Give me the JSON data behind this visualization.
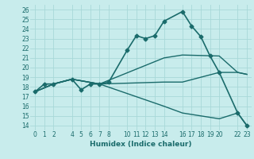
{
  "xlabel": "Humidex (Indice chaleur)",
  "bg_color": "#c8ecec",
  "grid_color": "#a8d8d8",
  "line_color": "#1a6b6b",
  "xlim": [
    -0.5,
    23.5
  ],
  "ylim": [
    13.5,
    26.5
  ],
  "yticks": [
    14,
    15,
    16,
    17,
    18,
    19,
    20,
    21,
    22,
    23,
    24,
    25,
    26
  ],
  "xtick_positions": [
    0,
    1,
    2,
    4,
    5,
    6,
    7,
    8,
    10,
    11,
    12,
    13,
    14,
    16,
    17,
    18,
    19,
    20,
    22,
    23
  ],
  "xtick_labels": [
    "0",
    "1",
    "2",
    "4",
    "5",
    "6",
    "7",
    "8",
    "10",
    "11",
    "12",
    "13",
    "14",
    "16",
    "17",
    "18",
    "19",
    "20",
    "22",
    "23"
  ],
  "series": [
    {
      "x": [
        0,
        1,
        2,
        4,
        5,
        6,
        7,
        8,
        10,
        11,
        12,
        13,
        14,
        16,
        17,
        18,
        19,
        20,
        22,
        23
      ],
      "y": [
        17.5,
        18.3,
        18.3,
        18.8,
        17.7,
        18.3,
        18.3,
        18.5,
        21.8,
        23.3,
        23.0,
        23.3,
        24.8,
        25.8,
        24.3,
        23.2,
        21.2,
        19.5,
        15.3,
        14.0
      ],
      "marker": "D",
      "markersize": 2.5,
      "linewidth": 1.2
    },
    {
      "x": [
        0,
        2,
        4,
        7,
        14,
        16,
        20,
        22,
        23
      ],
      "y": [
        17.5,
        18.3,
        18.8,
        18.3,
        21.0,
        21.3,
        21.2,
        19.5,
        19.3
      ],
      "marker": null,
      "markersize": 0,
      "linewidth": 1.0
    },
    {
      "x": [
        0,
        2,
        4,
        7,
        14,
        16,
        20,
        22,
        23
      ],
      "y": [
        17.5,
        18.3,
        18.8,
        18.3,
        18.5,
        18.5,
        19.5,
        19.5,
        19.3
      ],
      "marker": null,
      "markersize": 0,
      "linewidth": 1.0
    },
    {
      "x": [
        0,
        2,
        4,
        7,
        14,
        16,
        20,
        22,
        23
      ],
      "y": [
        17.5,
        18.3,
        18.8,
        18.3,
        16.0,
        15.3,
        14.7,
        15.3,
        14.0
      ],
      "marker": null,
      "markersize": 0,
      "linewidth": 1.0
    }
  ]
}
